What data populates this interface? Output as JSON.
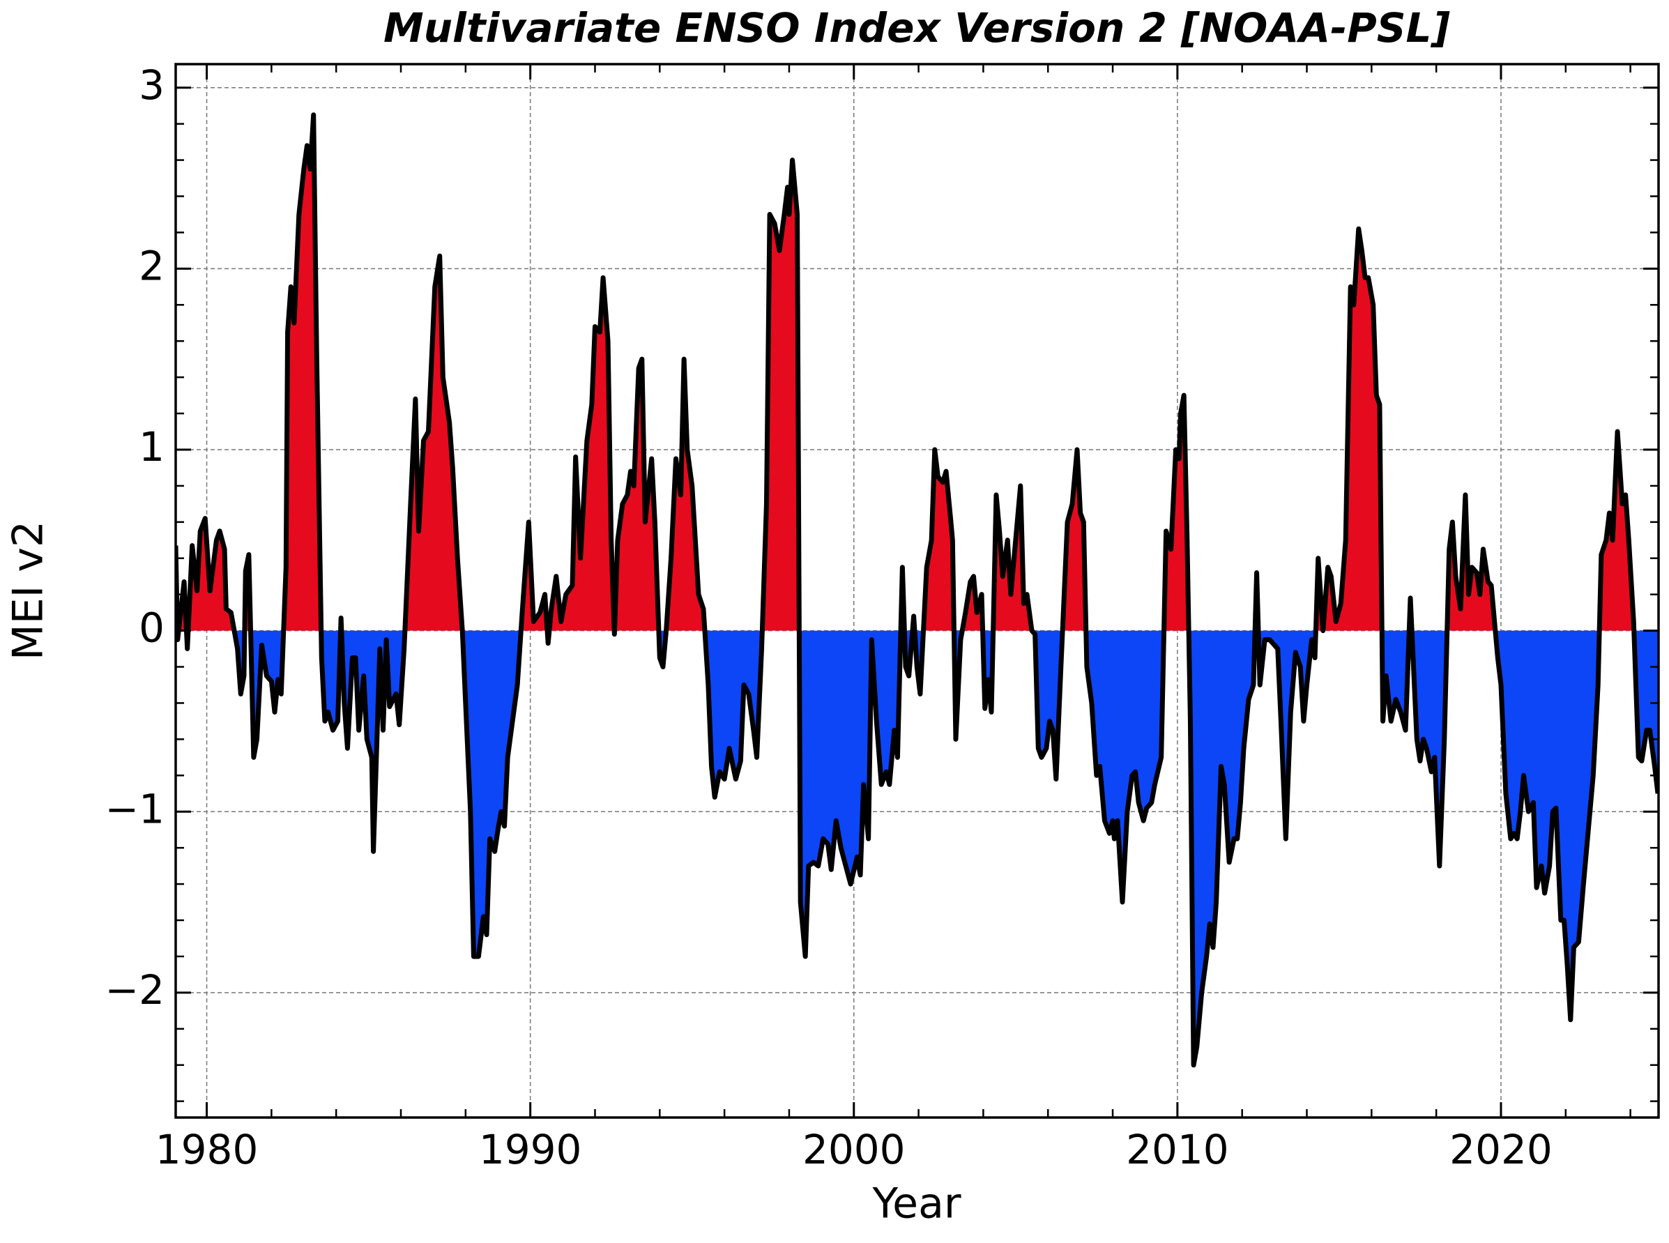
{
  "chart_data": {
    "type": "area",
    "title": "Multivariate ENSO Index Version 2 [NOAA-PSL]",
    "xlabel": "Year",
    "ylabel": "MEI v2",
    "x": [
      1979.04,
      1979.1,
      1979.3,
      1979.4,
      1979.55,
      1979.7,
      1979.8,
      1979.95,
      1980.1,
      1980.3,
      1980.4,
      1980.55,
      1980.6,
      1980.75,
      1980.95,
      1981.05,
      1981.15,
      1981.2,
      1981.3,
      1981.45,
      1981.55,
      1981.7,
      1981.85,
      1982.0,
      1982.1,
      1982.2,
      1982.3,
      1982.45,
      1982.5,
      1982.6,
      1982.7,
      1982.85,
      1983.0,
      1983.1,
      1983.2,
      1983.3,
      1983.4,
      1983.55,
      1983.65,
      1983.75,
      1983.9,
      1984.05,
      1984.15,
      1984.25,
      1984.35,
      1984.5,
      1984.6,
      1984.7,
      1984.85,
      1984.95,
      1985.1,
      1985.15,
      1985.35,
      1985.45,
      1985.55,
      1985.65,
      1985.85,
      1985.95,
      1986.1,
      1986.3,
      1986.45,
      1986.55,
      1986.7,
      1986.85,
      1986.95,
      1987.05,
      1987.2,
      1987.3,
      1987.5,
      1987.6,
      1987.75,
      1987.9,
      1988.0,
      1988.15,
      1988.25,
      1988.4,
      1988.55,
      1988.65,
      1988.75,
      1988.9,
      1989.0,
      1989.1,
      1989.2,
      1989.3,
      1989.45,
      1989.6,
      1989.75,
      1989.95,
      1990.1,
      1990.3,
      1990.45,
      1990.55,
      1990.65,
      1990.8,
      1990.95,
      1991.1,
      1991.3,
      1991.4,
      1991.55,
      1991.75,
      1991.9,
      1992.0,
      1992.15,
      1992.25,
      1992.4,
      1992.5,
      1992.6,
      1992.7,
      1992.85,
      1993.0,
      1993.1,
      1993.2,
      1993.35,
      1993.45,
      1993.55,
      1993.75,
      1993.85,
      1994.0,
      1994.1,
      1994.2,
      1994.35,
      1994.5,
      1994.65,
      1994.75,
      1994.85,
      1995.0,
      1995.2,
      1995.35,
      1995.5,
      1995.6,
      1995.7,
      1995.85,
      1996.0,
      1996.15,
      1996.35,
      1996.5,
      1996.6,
      1996.75,
      1996.9,
      1997.0,
      1997.15,
      1997.3,
      1997.4,
      1997.55,
      1997.7,
      1997.85,
      1997.95,
      1998.0,
      1998.1,
      1998.25,
      1998.35,
      1998.5,
      1998.6,
      1998.75,
      1998.9,
      1999.05,
      1999.2,
      1999.3,
      1999.45,
      1999.6,
      1999.75,
      1999.9,
      2000.1,
      2000.2,
      2000.3,
      2000.45,
      2000.55,
      2000.7,
      2000.85,
      2001.0,
      2001.1,
      2001.25,
      2001.35,
      2001.5,
      2001.6,
      2001.7,
      2001.85,
      2001.95,
      2002.05,
      2002.25,
      2002.4,
      2002.5,
      2002.6,
      2002.75,
      2002.85,
      2003.0,
      2003.05,
      2003.15,
      2003.3,
      2003.45,
      2003.6,
      2003.7,
      2003.8,
      2003.95,
      2004.05,
      2004.15,
      2004.25,
      2004.4,
      2004.5,
      2004.6,
      2004.75,
      2004.85,
      2005.0,
      2005.15,
      2005.25,
      2005.35,
      2005.5,
      2005.6,
      2005.7,
      2005.8,
      2005.95,
      2006.05,
      2006.15,
      2006.25,
      2006.4,
      2006.6,
      2006.75,
      2006.9,
      2007.0,
      2007.1,
      2007.2,
      2007.35,
      2007.5,
      2007.6,
      2007.75,
      2007.9,
      2008.0,
      2008.05,
      2008.15,
      2008.3,
      2008.45,
      2008.6,
      2008.7,
      2008.8,
      2008.95,
      2009.05,
      2009.2,
      2009.3,
      2009.5,
      2009.65,
      2009.8,
      2009.95,
      2010.05,
      2010.1,
      2010.2,
      2010.3,
      2010.4,
      2010.5,
      2010.6,
      2010.75,
      2010.9,
      2011.0,
      2011.1,
      2011.2,
      2011.35,
      2011.45,
      2011.6,
      2011.75,
      2011.85,
      2011.95,
      2012.05,
      2012.2,
      2012.35,
      2012.45,
      2012.55,
      2012.7,
      2012.85,
      2013.1,
      2013.2,
      2013.35,
      2013.5,
      2013.65,
      2013.8,
      2013.9,
      2014.0,
      2014.15,
      2014.25,
      2014.35,
      2014.5,
      2014.65,
      2014.75,
      2014.9,
      2015.05,
      2015.2,
      2015.35,
      2015.45,
      2015.6,
      2015.7,
      2015.8,
      2015.9,
      2016.05,
      2016.15,
      2016.25,
      2016.35,
      2016.45,
      2016.6,
      2016.75,
      2016.9,
      2017.05,
      2017.2,
      2017.4,
      2017.5,
      2017.6,
      2017.7,
      2017.85,
      2017.95,
      2018.1,
      2018.25,
      2018.4,
      2018.5,
      2018.6,
      2018.75,
      2018.9,
      2019.0,
      2019.1,
      2019.25,
      2019.35,
      2019.45,
      2019.6,
      2019.7,
      2019.8,
      2019.9,
      2020.0,
      2020.15,
      2020.3,
      2020.4,
      2020.5,
      2020.6,
      2020.7,
      2020.85,
      2021.0,
      2021.1,
      2021.25,
      2021.35,
      2021.5,
      2021.6,
      2021.7,
      2021.85,
      2021.95,
      2022.05,
      2022.15,
      2022.25,
      2022.4,
      2022.55,
      2022.7,
      2022.85,
      2023.0,
      2023.1,
      2023.25,
      2023.35,
      2023.45,
      2023.6,
      2023.75,
      2023.85,
      2023.95,
      2024.1,
      2024.25,
      2024.35,
      2024.5,
      2024.6,
      2024.75,
      2024.85
    ],
    "values": [
      0.47,
      -0.05,
      0.27,
      -0.1,
      0.47,
      0.22,
      0.55,
      0.62,
      0.22,
      0.5,
      0.55,
      0.45,
      0.12,
      0.1,
      -0.1,
      -0.35,
      -0.25,
      0.33,
      0.42,
      -0.7,
      -0.6,
      -0.08,
      -0.25,
      -0.28,
      -0.45,
      -0.27,
      -0.35,
      0.35,
      1.65,
      1.9,
      1.7,
      2.3,
      2.55,
      2.68,
      2.55,
      2.85,
      1.5,
      -0.15,
      -0.5,
      -0.45,
      -0.55,
      -0.5,
      0.07,
      -0.4,
      -0.65,
      -0.15,
      -0.15,
      -0.55,
      -0.25,
      -0.6,
      -0.7,
      -1.22,
      -0.1,
      -0.55,
      -0.05,
      -0.42,
      -0.35,
      -0.52,
      -0.1,
      0.7,
      1.28,
      0.55,
      1.05,
      1.1,
      1.5,
      1.9,
      2.07,
      1.4,
      1.15,
      0.9,
      0.4,
      0.0,
      -0.4,
      -1.0,
      -1.8,
      -1.8,
      -1.58,
      -1.68,
      -1.15,
      -1.22,
      -1.1,
      -1.0,
      -1.08,
      -0.7,
      -0.5,
      -0.3,
      0.1,
      0.6,
      0.05,
      0.1,
      0.2,
      -0.07,
      0.12,
      0.3,
      0.05,
      0.2,
      0.25,
      0.96,
      0.4,
      1.05,
      1.25,
      1.68,
      1.65,
      1.95,
      1.6,
      0.5,
      -0.02,
      0.5,
      0.7,
      0.75,
      0.88,
      0.8,
      1.45,
      1.5,
      0.6,
      0.95,
      0.6,
      -0.15,
      -0.2,
      0.0,
      0.4,
      0.95,
      0.75,
      1.5,
      1.0,
      0.8,
      0.2,
      0.12,
      -0.3,
      -0.75,
      -0.92,
      -0.78,
      -0.82,
      -0.65,
      -0.82,
      -0.72,
      -0.3,
      -0.35,
      -0.55,
      -0.7,
      -0.1,
      0.7,
      2.3,
      2.25,
      2.1,
      2.3,
      2.45,
      2.3,
      2.6,
      2.3,
      -1.5,
      -1.8,
      -1.3,
      -1.28,
      -1.3,
      -1.15,
      -1.18,
      -1.32,
      -1.05,
      -1.2,
      -1.3,
      -1.4,
      -1.25,
      -1.35,
      -0.85,
      -1.15,
      -0.05,
      -0.5,
      -0.85,
      -0.78,
      -0.85,
      -0.55,
      -0.7,
      0.35,
      -0.2,
      -0.25,
      0.08,
      -0.2,
      -0.35,
      0.35,
      0.5,
      1.0,
      0.85,
      0.82,
      0.88,
      0.6,
      0.5,
      -0.6,
      -0.05,
      0.1,
      0.27,
      0.3,
      0.1,
      0.2,
      -0.43,
      -0.27,
      -0.45,
      0.75,
      0.55,
      0.3,
      0.5,
      0.2,
      0.5,
      0.8,
      0.15,
      0.2,
      0.0,
      -0.02,
      -0.65,
      -0.7,
      -0.65,
      -0.5,
      -0.55,
      -0.82,
      -0.2,
      0.6,
      0.7,
      1.0,
      0.65,
      0.6,
      -0.2,
      -0.4,
      -0.8,
      -0.75,
      -1.05,
      -1.12,
      -1.05,
      -1.15,
      -1.05,
      -1.5,
      -1.0,
      -0.8,
      -0.78,
      -0.95,
      -1.05,
      -0.98,
      -0.95,
      -0.85,
      -0.7,
      0.55,
      0.45,
      1.0,
      0.95,
      1.2,
      1.3,
      0.5,
      -0.5,
      -2.4,
      -2.3,
      -2.0,
      -1.8,
      -1.62,
      -1.75,
      -1.5,
      -0.75,
      -0.85,
      -1.28,
      -1.15,
      -1.15,
      -0.95,
      -0.65,
      -0.38,
      -0.3,
      0.32,
      -0.3,
      -0.05,
      -0.05,
      -0.1,
      -0.5,
      -1.15,
      -0.45,
      -0.12,
      -0.2,
      -0.5,
      -0.3,
      -0.05,
      -0.15,
      0.4,
      0.0,
      0.35,
      0.3,
      0.05,
      0.15,
      0.5,
      1.9,
      1.8,
      2.22,
      2.1,
      1.95,
      1.95,
      1.8,
      1.3,
      1.25,
      -0.5,
      -0.25,
      -0.5,
      -0.38,
      -0.45,
      -0.55,
      0.18,
      -0.6,
      -0.72,
      -0.6,
      -0.65,
      -0.78,
      -0.7,
      -1.3,
      -0.6,
      0.45,
      0.6,
      0.3,
      0.12,
      0.75,
      0.2,
      0.35,
      0.32,
      0.2,
      0.45,
      0.27,
      0.25,
      0.05,
      -0.15,
      -0.3,
      -0.9,
      -1.15,
      -1.12,
      -1.15,
      -1.0,
      -0.8,
      -1.0,
      -0.95,
      -1.42,
      -1.3,
      -1.45,
      -1.3,
      -1.0,
      -0.98,
      -1.6,
      -1.6,
      -1.85,
      -2.15,
      -1.75,
      -1.72,
      -1.4,
      -1.1,
      -0.8,
      -0.3,
      0.42,
      0.5,
      0.65,
      0.5,
      1.1,
      0.7,
      0.75,
      0.5,
      0.05,
      -0.7,
      -0.72,
      -0.55,
      -0.55,
      -0.75,
      -0.9
    ],
    "line_color": "#000000",
    "positive_color": "#e60a1e",
    "negative_color": "#0d46f7",
    "xlim": [
      1979.04,
      2024.87
    ],
    "ylim": [
      -2.69,
      3.13
    ],
    "xticks": [
      1980,
      1990,
      2000,
      2010,
      2020
    ],
    "yticks": [
      {
        "value": -2,
        "label": "−2"
      },
      {
        "value": -1,
        "label": "−1"
      },
      0,
      1,
      2,
      3
    ],
    "grid": true,
    "minor_ticks": true
  }
}
